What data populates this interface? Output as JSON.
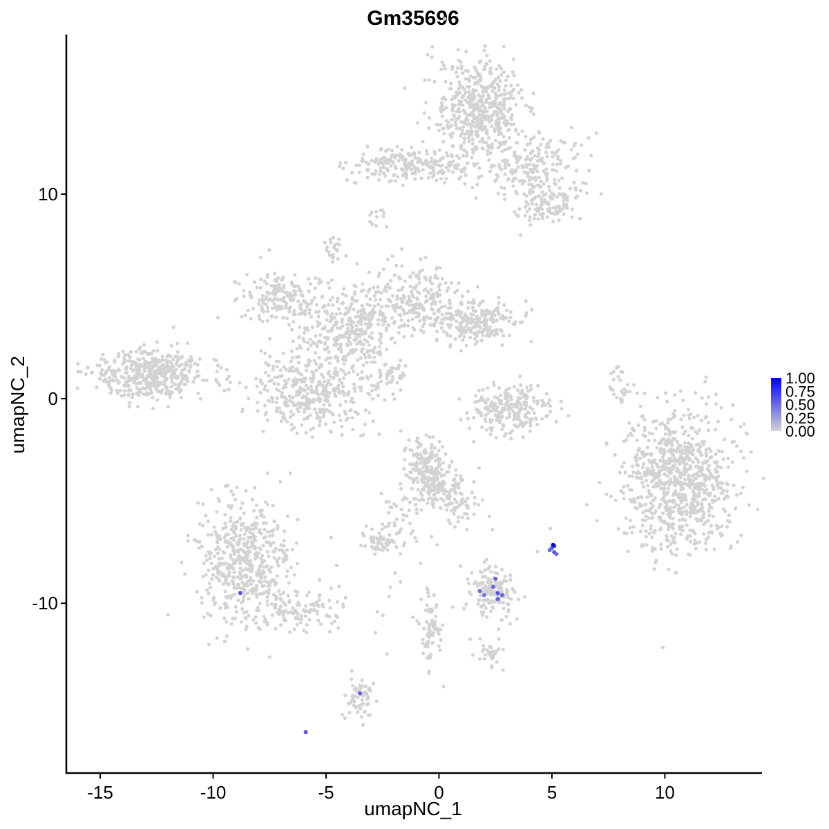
{
  "chart_data": {
    "type": "scatter",
    "title": "Gm35696",
    "xlabel": "umapNC_1",
    "ylabel": "umapNC_2",
    "xlim": [
      -16.5,
      14.3
    ],
    "ylim": [
      -18.3,
      17.8
    ],
    "x_ticks": [
      -15,
      -10,
      -5,
      0,
      5,
      10
    ],
    "x_tick_labels": [
      "-15",
      "-10",
      "-5",
      "0",
      "5",
      "10"
    ],
    "y_ticks": [
      -10,
      0,
      10
    ],
    "y_tick_labels": [
      "-10",
      "0",
      "10"
    ],
    "grid": false,
    "legend": {
      "position": "right",
      "type": "colorbar",
      "min": 0.0,
      "max": 1.0,
      "ticks": [
        1.0,
        0.75,
        0.5,
        0.25,
        0.0
      ],
      "tick_labels": [
        "1.00",
        "0.75",
        "0.50",
        "0.25",
        "0.00"
      ],
      "low_color": "#d3d3d3",
      "high_color": "#0000ff"
    },
    "colors": {
      "background_points": "#d3d3d3",
      "high": "#0000ff"
    },
    "clusters": [
      {
        "label": "top_right_cluster",
        "cx": 1.8,
        "cy": 14.0,
        "sx": 1.0,
        "sy": 1.3,
        "n": 500
      },
      {
        "label": "top_arm",
        "cx": -1.8,
        "cy": 11.5,
        "sx": 1.0,
        "sy": 0.4,
        "n": 160
      },
      {
        "label": "top_bridge",
        "cx": 0.2,
        "cy": 11.2,
        "sx": 0.8,
        "sy": 0.3,
        "n": 60
      },
      {
        "label": "top_right_arm",
        "cx": 4.2,
        "cy": 11.0,
        "sx": 1.1,
        "sy": 1.0,
        "n": 220
      },
      {
        "label": "top_right_tail",
        "cx": 5.0,
        "cy": 9.5,
        "sx": 0.6,
        "sy": 0.5,
        "n": 70
      },
      {
        "label": "top_small",
        "cx": -2.8,
        "cy": 8.8,
        "sx": 0.2,
        "sy": 0.3,
        "n": 12
      },
      {
        "label": "far_left_cluster",
        "cx": -12.8,
        "cy": 1.2,
        "sx": 1.2,
        "sy": 0.6,
        "n": 450
      },
      {
        "label": "center_core",
        "cx": -3.8,
        "cy": 3.5,
        "sx": 1.1,
        "sy": 1.0,
        "n": 330
      },
      {
        "label": "center_left_arm",
        "cx": -7.0,
        "cy": 5.0,
        "sx": 0.9,
        "sy": 0.6,
        "n": 180
      },
      {
        "label": "center_lower_loop",
        "cx": -5.5,
        "cy": 0.5,
        "sx": 1.4,
        "sy": 1.0,
        "n": 380
      },
      {
        "label": "center_right_arm",
        "cx": -1.0,
        "cy": 4.8,
        "sx": 0.9,
        "sy": 0.9,
        "n": 200
      },
      {
        "label": "center_far_right",
        "cx": 1.6,
        "cy": 3.7,
        "sx": 0.9,
        "sy": 0.5,
        "n": 220
      },
      {
        "label": "center_top_small",
        "cx": -4.6,
        "cy": 7.2,
        "sx": 0.2,
        "sy": 0.3,
        "n": 25
      },
      {
        "label": "center_streak",
        "cx": -2.1,
        "cy": 1.0,
        "sx": 0.6,
        "sy": 0.5,
        "n": 40
      },
      {
        "label": "arc_cluster",
        "cx": 3.2,
        "cy": -0.5,
        "sx": 0.9,
        "sy": 0.6,
        "n": 230
      },
      {
        "label": "small_arc_right",
        "cx": 8.0,
        "cy": 0.5,
        "sx": 0.2,
        "sy": 0.6,
        "n": 25
      },
      {
        "label": "right_cluster",
        "cx": 10.6,
        "cy": -4.0,
        "sx": 1.2,
        "sy": 1.7,
        "n": 850
      },
      {
        "label": "lower_left_cluster",
        "cx": -8.6,
        "cy": -8.0,
        "sx": 1.0,
        "sy": 1.5,
        "n": 520
      },
      {
        "label": "lower_left_tail",
        "cx": -6.0,
        "cy": -10.3,
        "sx": 1.0,
        "sy": 0.5,
        "n": 110
      },
      {
        "label": "lower_center_top",
        "cx": -0.4,
        "cy": -3.7,
        "sx": 0.5,
        "sy": 0.8,
        "n": 240
      },
      {
        "label": "lower_center_arm",
        "cx": 0.8,
        "cy": -4.8,
        "sx": 0.5,
        "sy": 0.7,
        "n": 80
      },
      {
        "label": "lower_center_small",
        "cx": -2.5,
        "cy": -6.9,
        "sx": 0.4,
        "sy": 0.3,
        "n": 60
      },
      {
        "label": "lower_center_streak",
        "cx": -1.7,
        "cy": -5.5,
        "sx": 0.4,
        "sy": 0.6,
        "n": 30
      },
      {
        "label": "purple_group_cluster",
        "cx": 2.4,
        "cy": -9.5,
        "sx": 0.5,
        "sy": 0.5,
        "n": 140
      },
      {
        "label": "lower_stripe",
        "cx": -0.4,
        "cy": -11.0,
        "sx": 0.2,
        "sy": 0.8,
        "n": 70
      },
      {
        "label": "lower_right_small",
        "cx": 2.2,
        "cy": -12.5,
        "sx": 0.3,
        "sy": 0.3,
        "n": 30
      },
      {
        "label": "bottom_cluster",
        "cx": -3.5,
        "cy": -14.7,
        "sx": 0.3,
        "sy": 0.5,
        "n": 60
      },
      {
        "label": "scatter_noise",
        "cx": 0.0,
        "cy": -9.0,
        "sx": 2.5,
        "sy": 2.5,
        "n": 40
      }
    ],
    "expressing_points": [
      {
        "x": -8.8,
        "y": -9.5,
        "value": 0.6
      },
      {
        "x": 1.8,
        "y": -9.4,
        "value": 0.5
      },
      {
        "x": 2.0,
        "y": -9.6,
        "value": 0.45
      },
      {
        "x": 2.5,
        "y": -8.8,
        "value": 0.55
      },
      {
        "x": 2.4,
        "y": -9.2,
        "value": 0.5
      },
      {
        "x": 2.6,
        "y": -9.5,
        "value": 0.6
      },
      {
        "x": 2.6,
        "y": -9.8,
        "value": 0.55
      },
      {
        "x": 2.8,
        "y": -9.6,
        "value": 0.5
      },
      {
        "x": 4.9,
        "y": -7.4,
        "value": 0.5
      },
      {
        "x": 5.0,
        "y": -7.3,
        "value": 0.55
      },
      {
        "x": 5.1,
        "y": -7.5,
        "value": 0.6
      },
      {
        "x": 5.1,
        "y": -7.2,
        "value": 0.75
      },
      {
        "x": 5.05,
        "y": -7.15,
        "value": 1.0
      },
      {
        "x": 5.2,
        "y": -7.6,
        "value": 0.5
      },
      {
        "x": -3.5,
        "y": -14.4,
        "value": 0.55
      },
      {
        "x": -5.9,
        "y": -16.3,
        "value": 0.6
      }
    ]
  }
}
